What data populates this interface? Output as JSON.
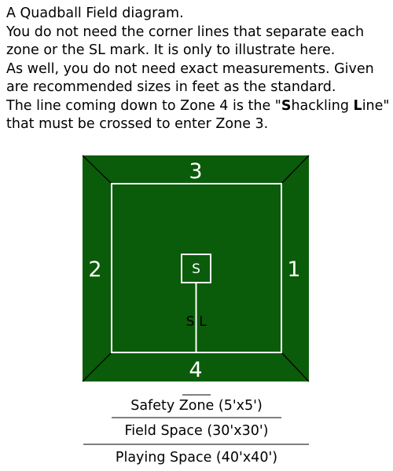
{
  "intro": {
    "line1": "A Quadball Field diagram.",
    "line2": "You do not need the corner lines that separate each",
    "line3": "zone or the SL mark. It is only to illustrate here.",
    "line4": "As well, you do not need exact measurements. Given",
    "line5": "are recommended sizes in feet as the standard.",
    "line6_prefix": "The line coming down to Zone 4 is the \"",
    "line6_s": "S",
    "line6_mid": "hackling ",
    "line6_l": "L",
    "line6_suffix": "ine\"",
    "line7": "that must be crossed to enter Zone 3."
  },
  "diagram": {
    "zone_top": "3",
    "zone_left": "2",
    "zone_right": "1",
    "zone_bottom": "4",
    "safety_box_label": "S",
    "shackling_line_label_s": "S",
    "shackling_line_label_l": "L",
    "field_color": "#0a5c0a",
    "line_color": "#ffffff"
  },
  "legend": {
    "safety": "Safety Zone (5'x5')",
    "field": "Field Space (30'x30')",
    "playing": "Playing Space (40'x40')"
  }
}
